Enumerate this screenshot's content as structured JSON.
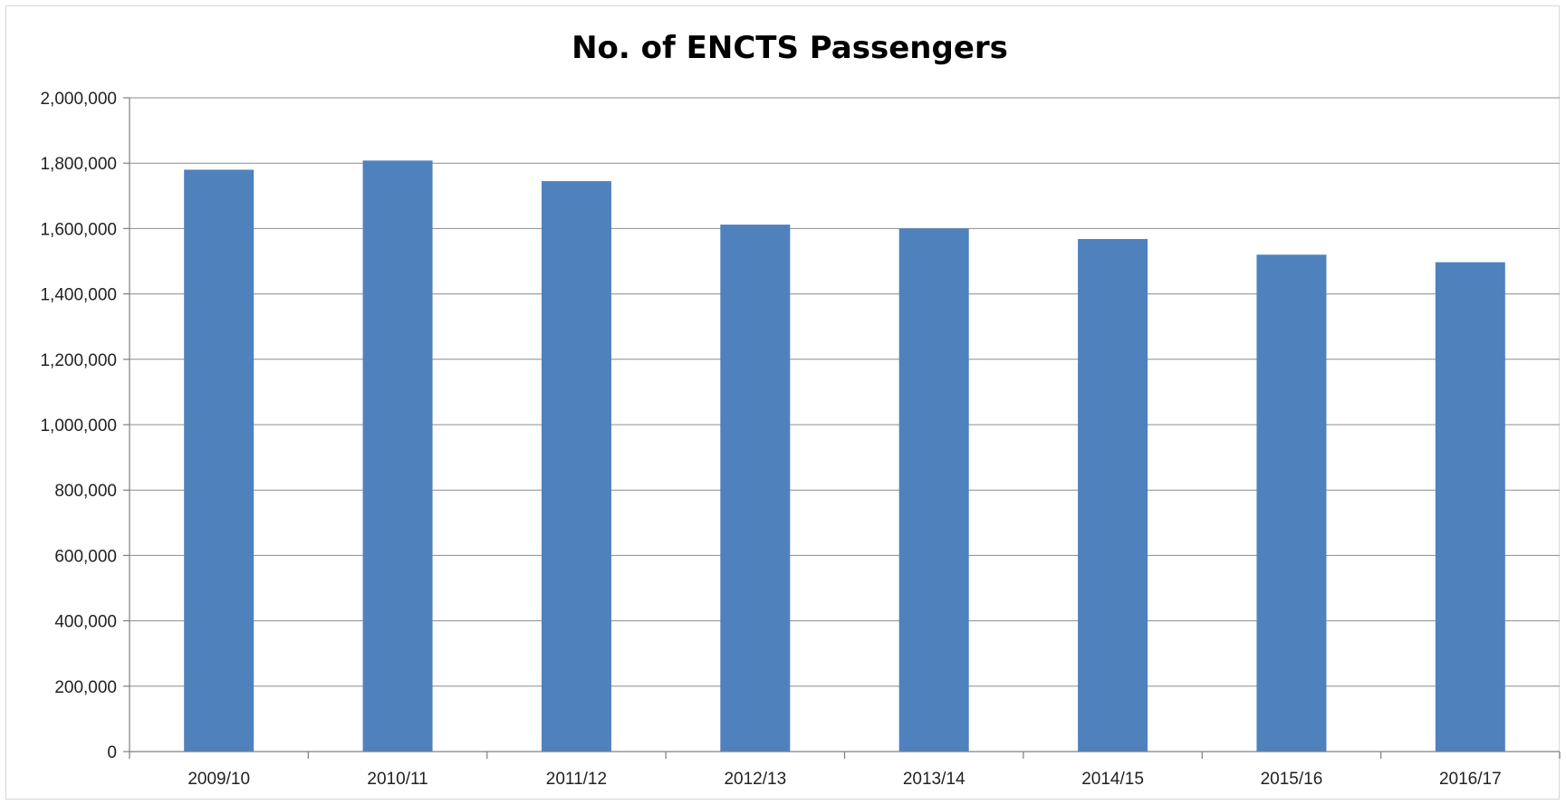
{
  "chart_data": {
    "type": "bar",
    "title": "No. of ENCTS Passengers",
    "xlabel": "",
    "ylabel": "",
    "categories": [
      "2009/10",
      "2010/11",
      "2011/12",
      "2012/13",
      "2013/14",
      "2014/15",
      "2015/16",
      "2016/17"
    ],
    "series": [
      {
        "values": [
          1780000,
          1808000,
          1745000,
          1612000,
          1600000,
          1568000,
          1520000,
          1497000
        ]
      }
    ],
    "ylim": [
      0,
      2000000
    ],
    "yticks": [
      0,
      200000,
      400000,
      600000,
      800000,
      1000000,
      1200000,
      1400000,
      1600000,
      1800000,
      2000000
    ],
    "ytick_labels": [
      "0",
      "200,000",
      "400,000",
      "600,000",
      "800,000",
      "1,000,000",
      "1,200,000",
      "1,400,000",
      "1,600,000",
      "1,800,000",
      "2,000,000"
    ],
    "grid": true,
    "legend": "none",
    "bar_color": "#4f81bd"
  }
}
